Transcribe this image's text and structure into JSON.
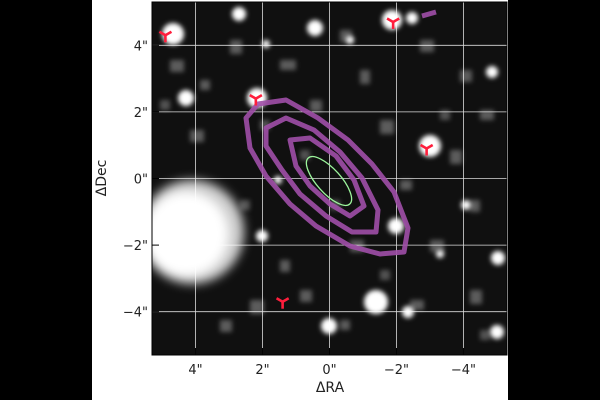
{
  "figure": {
    "x_axis_label": "ΔRA",
    "y_axis_label": "ΔDec",
    "x_tick_labels": [
      "4\"",
      "2\"",
      "0\"",
      "−2\"",
      "−4\""
    ],
    "y_tick_labels": [
      "4\"",
      "2\"",
      "0\"",
      "−2\"",
      "−4\""
    ],
    "x_tick_values": [
      4,
      2,
      0,
      -2,
      -4
    ],
    "y_tick_values": [
      4,
      2,
      0,
      -2,
      -4
    ],
    "ra_range": [
      5.3,
      -5.3
    ],
    "dec_range": [
      -5.3,
      5.3
    ],
    "grid": true,
    "colors": {
      "background_sky": "#101010",
      "grid": "#ffffff",
      "contour": "#a04fa8",
      "ellipse": "#9cf59c",
      "marker": "#ff1e3c",
      "frame": "#000000"
    },
    "markers": [
      {
        "ra": 4.9,
        "dec": 4.3
      },
      {
        "ra": 2.2,
        "dec": 2.4
      },
      {
        "ra": -1.9,
        "dec": 4.7
      },
      {
        "ra": -2.9,
        "dec": 0.9
      },
      {
        "ra": 1.4,
        "dec": -3.7
      }
    ],
    "icons": {
      "marker": "tri-marker-icon"
    }
  }
}
